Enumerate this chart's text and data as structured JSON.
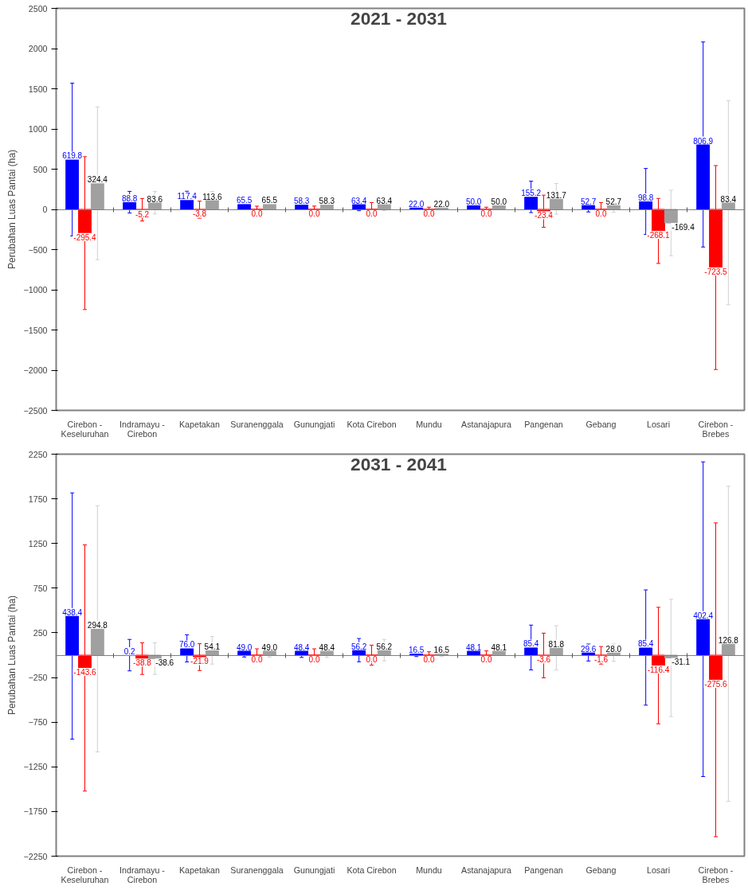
{
  "chart_data": [
    {
      "type": "bar",
      "title": "2021 - 2031",
      "ylabel": "Perubahan Luas Pantai (ha)",
      "categories": [
        "Cirebon - Keseluruhan",
        "Indramayu - Cirebon",
        "Kapetakan",
        "Suranenggala",
        "Gunungjati",
        "Kota Cirebon",
        "Mundu",
        "Astanajapura",
        "Pangenan",
        "Gebang",
        "Losari",
        "Cirebon - Brebes"
      ],
      "series": [
        {
          "color": "#0000ff",
          "values": [
            619.8,
            88.8,
            117.4,
            65.5,
            58.3,
            63.4,
            22.0,
            50.0,
            155.2,
            52.7,
            98.8,
            806.9
          ],
          "value_labels": [
            "619.8",
            "88.8",
            "117.4",
            "65.5",
            "58.3",
            "63.4",
            "22.0",
            "50.0",
            "155.2",
            "52.7",
            "98.8",
            "806.9"
          ],
          "errors": [
            950,
            135,
            108,
            38,
            43,
            80,
            25,
            34,
            195,
            85,
            410,
            1275
          ]
        },
        {
          "color": "#ff0000",
          "values": [
            -295.4,
            -5.2,
            -3.8,
            0.0,
            0.0,
            0.0,
            0.0,
            0.0,
            -23.4,
            0.0,
            -268.1,
            -723.5
          ],
          "value_labels": [
            "-295.4",
            "-5.2",
            "-3.8",
            "0.0",
            "0.0",
            "0.0",
            "0.0",
            "0.0",
            "-23.4",
            "0.0",
            "-268.1",
            "-723.5"
          ],
          "errors": [
            950,
            140,
            106,
            40,
            41,
            85,
            27,
            27,
            200,
            85,
            404,
            1268
          ]
        },
        {
          "color": "#a0a0a0",
          "values": [
            324.4,
            83.6,
            113.6,
            65.5,
            58.3,
            63.4,
            22.0,
            50.0,
            131.7,
            52.7,
            -169.4,
            83.4
          ],
          "value_labels": [
            "324.4",
            "83.6",
            "113.6",
            "65.5",
            "58.3",
            "63.4",
            "22.0",
            "50.0",
            "131.7",
            "52.7",
            "-169.4",
            "83.4"
          ],
          "errors": [
            950,
            140,
            110,
            37,
            44,
            80,
            28,
            35,
            191,
            88,
            407,
            1270
          ]
        }
      ],
      "ylim": [
        -2500,
        2500
      ],
      "yticks": [
        -2500,
        -2000,
        -1500,
        -1000,
        -500,
        0,
        500,
        1000,
        1500,
        2000,
        2500
      ]
    },
    {
      "type": "bar",
      "title": "2031 - 2041",
      "ylabel": "Perubahan Luas Pantai (ha)",
      "categories": [
        "Cirebon - Keseluruhan",
        "Indramayu - Cirebon",
        "Kapetakan",
        "Suranenggala",
        "Gunungjati",
        "Kota Cirebon",
        "Mundu",
        "Astanajapura",
        "Pangenan",
        "Gebang",
        "Losari",
        "Cirebon - Brebes"
      ],
      "series": [
        {
          "color": "#0000ff",
          "values": [
            438.4,
            0.2,
            76.0,
            49.0,
            48.4,
            56.2,
            16.5,
            48.1,
            85.4,
            29.6,
            85.4,
            402.4
          ],
          "value_labels": [
            "438.4",
            "0.2",
            "76.0",
            "49.0",
            "48.4",
            "56.2",
            "16.5",
            "48.1",
            "85.4",
            "29.6",
            "85.4",
            "402.4"
          ],
          "errors": [
            1378,
            176,
            152,
            70,
            74,
            130,
            32,
            48,
            251,
            95,
            645,
            1761
          ]
        },
        {
          "color": "#ff0000",
          "values": [
            -143.6,
            -38.8,
            -21.9,
            0.0,
            0.0,
            0.0,
            0.0,
            0.0,
            -3.6,
            -1.6,
            -116.4,
            -275.6
          ],
          "value_labels": [
            "-143.6",
            "-38.8",
            "-21.9",
            "0.0",
            "0.0",
            "0.0",
            "0.0",
            "0.0",
            "-3.6",
            "-1.6",
            "-116.4",
            "-275.6"
          ],
          "errors": [
            1378,
            177,
            150,
            71,
            71,
            112,
            38,
            48,
            250,
            98,
            652,
            1756
          ]
        },
        {
          "color": "#a0a0a0",
          "values": [
            294.8,
            -38.6,
            54.1,
            49.0,
            48.4,
            56.2,
            16.5,
            48.1,
            81.8,
            28.0,
            -31.1,
            126.8
          ],
          "value_labels": [
            "294.8",
            "-38.6",
            "54.1",
            "49.0",
            "48.4",
            "56.2",
            "16.5",
            "48.1",
            "81.8",
            "28.0",
            "-31.1",
            "126.8"
          ],
          "errors": [
            1378,
            177,
            154,
            70,
            74,
            120,
            32,
            48,
            248,
            97,
            656,
            1764
          ]
        }
      ],
      "ylim": [
        -2250,
        2250
      ],
      "yticks": [
        -2250,
        -1750,
        -1250,
        -750,
        -250,
        250,
        750,
        1250,
        1750,
        2250
      ]
    }
  ]
}
